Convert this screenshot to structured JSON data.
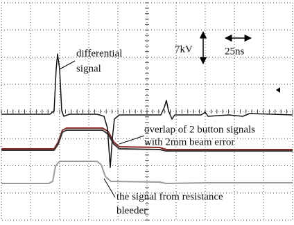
{
  "annotations": {
    "differential": [
      "differential",
      "signal"
    ],
    "voltage_scale": "7kV",
    "time_scale": "25ns",
    "overlap": [
      "overlap of 2 button signals",
      "with 2mm beam error"
    ],
    "resistance": [
      "the signal from resistance",
      "bleeder"
    ]
  }
}
